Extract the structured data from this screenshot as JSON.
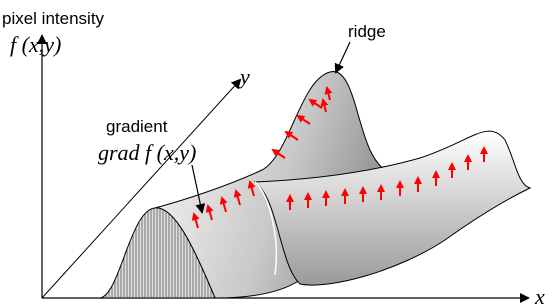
{
  "axis_labels": {
    "vertical": "pixel intensity",
    "vertical_function": "f (x,y)",
    "x": "x",
    "y": "y"
  },
  "annotations": {
    "ridge": "ridge",
    "gradient": "gradient",
    "gradient_function": "grad f (x,y)"
  }
}
